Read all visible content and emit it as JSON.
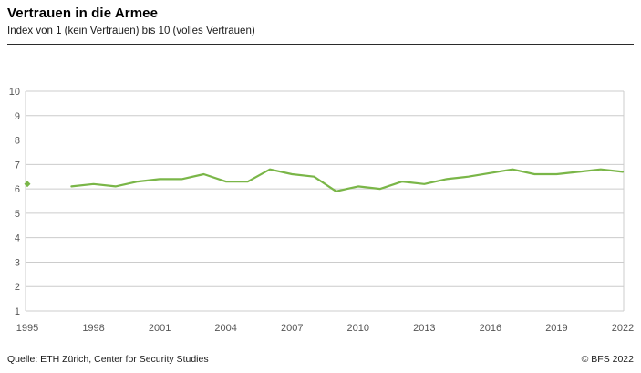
{
  "header": {
    "title": "Vertrauen in die Armee",
    "subtitle": "Index von 1 (kein Vertrauen) bis 10 (volles Vertrauen)"
  },
  "footer": {
    "source": "Quelle: ETH Zürich, Center for Security Studies",
    "copyright": "© BFS 2022"
  },
  "chart_data": {
    "type": "line",
    "title": "Vertrauen in die Armee",
    "subtitle": "Index von 1 (kein Vertrauen) bis 10 (volles Vertrauen)",
    "x": [
      1995,
      1996,
      1997,
      1998,
      1999,
      2000,
      2001,
      2002,
      2003,
      2004,
      2005,
      2006,
      2007,
      2008,
      2009,
      2010,
      2011,
      2012,
      2013,
      2014,
      2015,
      2016,
      2017,
      2018,
      2019,
      2020,
      2021,
      2022
    ],
    "series": [
      {
        "name": "Vertrauen in die Armee",
        "color": "#7ab648",
        "values": [
          6.2,
          null,
          6.1,
          6.2,
          6.1,
          6.3,
          6.4,
          6.4,
          6.6,
          6.3,
          6.3,
          6.8,
          6.6,
          6.5,
          5.9,
          6.1,
          6.0,
          6.3,
          6.2,
          6.4,
          6.5,
          6.65,
          6.8,
          6.6,
          6.6,
          6.7,
          6.8,
          6.7
        ]
      }
    ],
    "xlim": [
      1995,
      2022
    ],
    "ylim": [
      1,
      10
    ],
    "yticks": [
      1,
      2,
      3,
      4,
      5,
      6,
      7,
      8,
      9,
      10
    ],
    "xticks": [
      1995,
      1998,
      2001,
      2004,
      2007,
      2010,
      2013,
      2016,
      2019,
      2022
    ],
    "grid": true,
    "grid_color": "#cccccc",
    "axis_color": "#555555",
    "legend_position": "none"
  }
}
